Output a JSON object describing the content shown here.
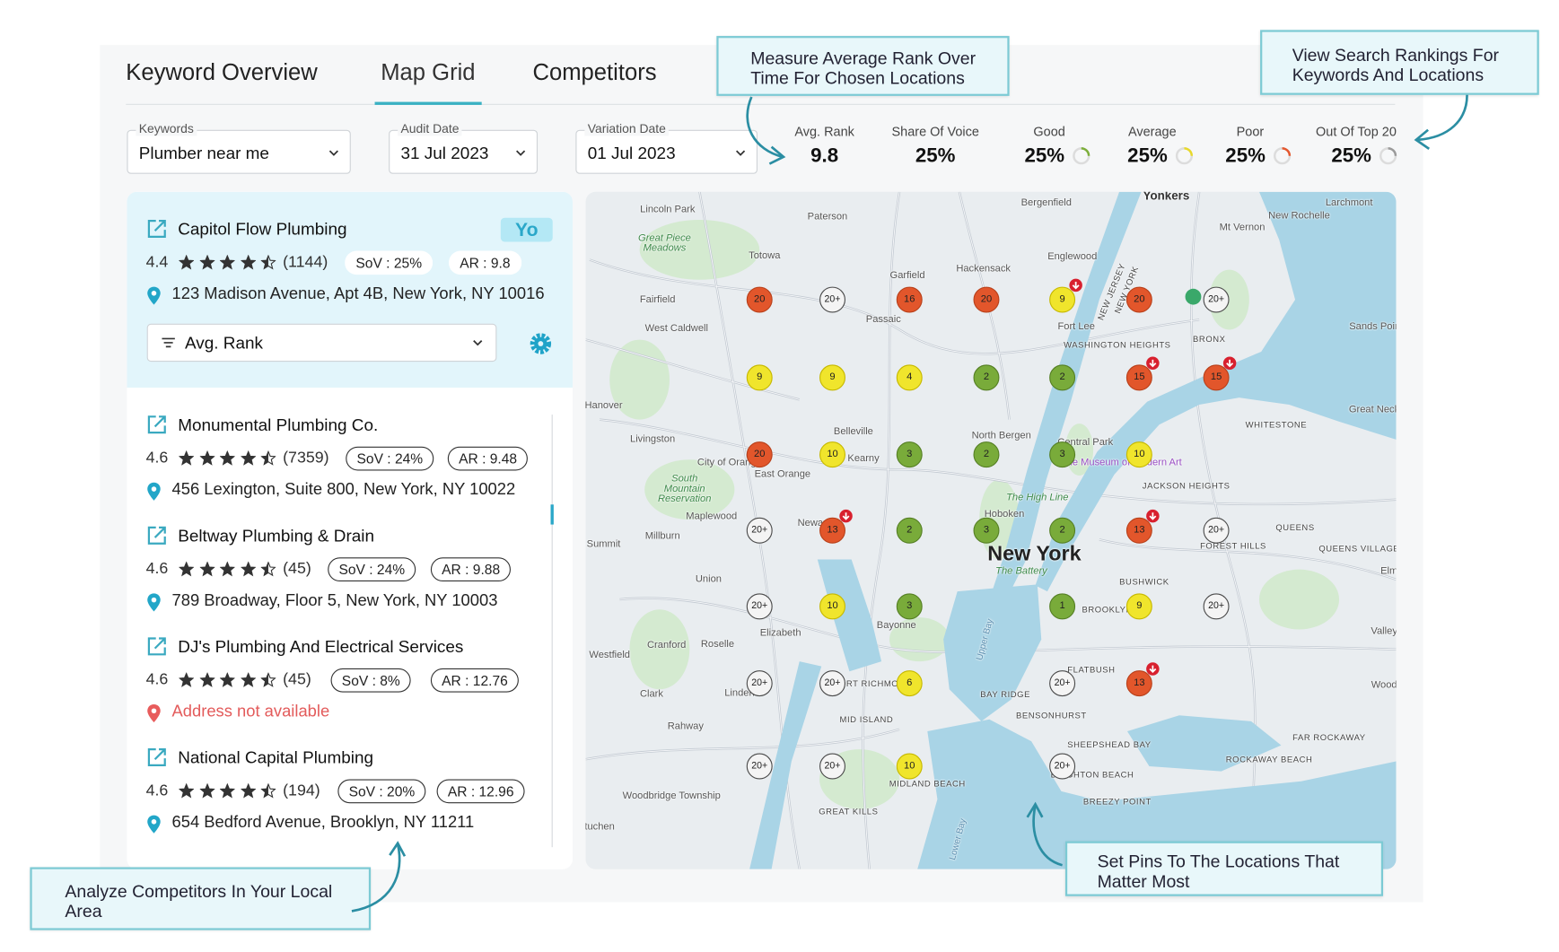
{
  "tabs": [
    "Keyword Overview",
    "Map Grid",
    "Competitors"
  ],
  "active_tab": 1,
  "filters": [
    {
      "label": "Keywords",
      "value": "Plumber near me"
    },
    {
      "label": "Audit Date",
      "value": "31 Jul 2023"
    },
    {
      "label": "Variation Date",
      "value": "01 Jul 2023"
    }
  ],
  "stats": [
    {
      "label": "Avg. Rank",
      "value": "9.8"
    },
    {
      "label": "Share Of Voice",
      "value": "25%"
    },
    {
      "label": "Good",
      "value": "25%",
      "ring": "#7cae3a"
    },
    {
      "label": "Average",
      "value": "25%",
      "ring": "#e8d92a"
    },
    {
      "label": "Poor",
      "value": "25%",
      "ring": "#e4572e"
    },
    {
      "label": "Out Of Top 20",
      "value": "25%",
      "ring": "#9a9a9a"
    }
  ],
  "selected": {
    "name": "Capitol Flow Plumbing",
    "badge": "Yo",
    "rating": "4.4",
    "reviews": "(1144)",
    "sov": "SoV : 25%",
    "ar": "AR : 9.8",
    "address": "123 Madison Avenue, Apt 4B, New York, NY 10016",
    "metric": "Avg. Rank"
  },
  "competitors": [
    {
      "name": "Monumental Plumbing Co.",
      "rating": "4.6",
      "reviews": "(7359)",
      "sov": "SoV : 24%",
      "ar": "AR : 9.48",
      "address": "456 Lexington, Suite 800, New York, NY 10022",
      "address_missing": false
    },
    {
      "name": "Beltway Plumbing & Drain",
      "rating": "4.6",
      "reviews": "(45)",
      "sov": "SoV : 24%",
      "ar": "AR : 9.88",
      "address": "789 Broadway, Floor 5, New York, NY 10003",
      "address_missing": false
    },
    {
      "name": "DJ's Plumbing And Electrical Services",
      "rating": "4.6",
      "reviews": "(45)",
      "sov": "SoV : 8%",
      "ar": "AR : 12.76",
      "address": "Address not available",
      "address_missing": true
    },
    {
      "name": "National Capital Plumbing",
      "rating": "4.6",
      "reviews": "(194)",
      "sov": "SoV : 20%",
      "ar": "AR : 12.96",
      "address": "654 Bedford Avenue, Brooklyn, NY 11211",
      "address_missing": false
    }
  ],
  "map": {
    "labels": [
      "Lincoln Park",
      "Paterson",
      "Great Piece Meadows",
      "Totowa",
      "Garfield",
      "Hackensack",
      "Bergenfield",
      "Englewood",
      "Yonkers",
      "Larchmont",
      "New Rochelle",
      "Mt Vernon",
      "Fairfield",
      "West Caldwell",
      "Passaic",
      "Fort Lee",
      "WASHINGTON HEIGHTS",
      "BRONX",
      "Sands Point",
      "Hanover",
      "Livingston",
      "Belleville",
      "North Bergen",
      "Central Park",
      "The Museum of Modern Art",
      "WHITESTONE",
      "Great Neck",
      "City of Orange",
      "East Orange",
      "South Mountain Reservation",
      "Maplewood",
      "Kearny",
      "The High Line",
      "Hoboken",
      "New York",
      "The Battery",
      "JACKSON HEIGHTS",
      "QUEENS",
      "FOREST HILLS",
      "QUEENS VILLAGE",
      "Summit",
      "Millburn",
      "Newark",
      "Union",
      "BUSHWICK",
      "BROOKLYN",
      "Elizabeth",
      "Bayonne",
      "Westfield",
      "Cranford",
      "Roselle",
      "Clark",
      "Linden",
      "PORT RICHMOND",
      "BAY RIDGE",
      "FLATBUSH",
      "BENSONHURST",
      "Valley",
      "Elm",
      "Wood",
      "Rahway",
      "MID ISLAND",
      "SHEEPSHEAD BAY",
      "FAR ROCKAWAY",
      "ROCKAWAY BEACH",
      "BRIGHTON BEACH",
      "BREEZY POINT",
      "Woodbridge Township",
      "GREAT KILLS",
      "MIDLAND BEACH",
      "Upper Bay",
      "Lower Bay",
      "NEW JERSEY",
      "NEW YORK",
      "tuchen"
    ],
    "grid": [
      [
        {
          "label": "20",
          "level": "poor",
          "drop": false
        },
        {
          "label": "20+",
          "level": "out",
          "drop": false
        },
        {
          "label": "16",
          "level": "poor",
          "drop": false
        },
        {
          "label": "20",
          "level": "poor",
          "drop": false
        },
        {
          "label": "9",
          "level": "average",
          "drop": true
        },
        {
          "label": "20",
          "level": "poor",
          "drop": false
        },
        {
          "label": "20+",
          "level": "out",
          "drop": false
        }
      ],
      [
        {
          "label": "9",
          "level": "average",
          "drop": false
        },
        {
          "label": "9",
          "level": "average",
          "drop": false
        },
        {
          "label": "4",
          "level": "average",
          "drop": false
        },
        {
          "label": "2",
          "level": "good",
          "drop": false
        },
        {
          "label": "2",
          "level": "good",
          "drop": false
        },
        {
          "label": "15",
          "level": "poor",
          "drop": true
        },
        {
          "label": "15",
          "level": "poor",
          "drop": true
        }
      ],
      [
        {
          "label": "20",
          "level": "poor",
          "drop": false
        },
        {
          "label": "10",
          "level": "average",
          "drop": false
        },
        {
          "label": "3",
          "level": "good",
          "drop": false
        },
        {
          "label": "2",
          "level": "good",
          "drop": false
        },
        {
          "label": "3",
          "level": "good",
          "drop": false
        },
        {
          "label": "10",
          "level": "average",
          "drop": false
        },
        null
      ],
      [
        {
          "label": "20+",
          "level": "out",
          "drop": false
        },
        {
          "label": "13",
          "level": "poor",
          "drop": true
        },
        {
          "label": "2",
          "level": "good",
          "drop": false
        },
        {
          "label": "3",
          "level": "good",
          "drop": false
        },
        {
          "label": "2",
          "level": "good",
          "drop": false
        },
        {
          "label": "13",
          "level": "poor",
          "drop": true
        },
        {
          "label": "20+",
          "level": "out",
          "drop": false
        }
      ],
      [
        {
          "label": "20+",
          "level": "out",
          "drop": false
        },
        {
          "label": "10",
          "level": "average",
          "drop": false
        },
        {
          "label": "3",
          "level": "good",
          "drop": false
        },
        null,
        {
          "label": "1",
          "level": "good",
          "drop": false
        },
        {
          "label": "9",
          "level": "average",
          "drop": false
        },
        {
          "label": "20+",
          "level": "out",
          "drop": false
        }
      ],
      [
        {
          "label": "20+",
          "level": "out",
          "drop": false
        },
        {
          "label": "20+",
          "level": "out",
          "drop": false
        },
        {
          "label": "6",
          "level": "average",
          "drop": false
        },
        null,
        {
          "label": "20+",
          "level": "out",
          "drop": false
        },
        {
          "label": "13",
          "level": "poor",
          "drop": true
        },
        null
      ],
      [
        {
          "label": "20+",
          "level": "out",
          "drop": false
        },
        {
          "label": "20+",
          "level": "out",
          "drop": false
        },
        {
          "label": "10",
          "level": "average",
          "drop": false
        },
        null,
        {
          "label": "20+",
          "level": "out",
          "drop": false
        },
        null,
        null
      ]
    ]
  },
  "callouts": [
    [
      "Measure Average Rank Over",
      "Time For Chosen Locations"
    ],
    [
      "View Search Rankings For",
      "Keywords And Locations"
    ],
    [
      "Analyze Competitors In Your Local",
      "Area"
    ],
    [
      "Set Pins To The Locations That",
      "Matter Most"
    ]
  ]
}
